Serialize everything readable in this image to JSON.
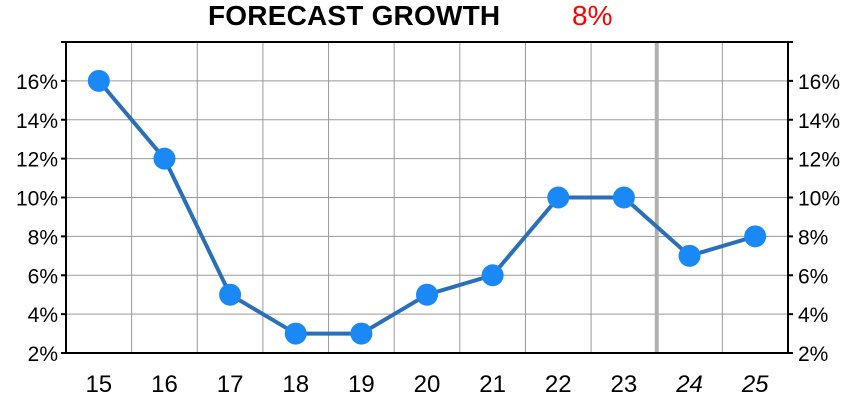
{
  "chart_data": {
    "type": "line",
    "title": "FORECAST GROWTH",
    "title_value": "8%",
    "title_value_color": "#ff0000",
    "x": [
      "15",
      "16",
      "17",
      "18",
      "19",
      "20",
      "21",
      "22",
      "23",
      "24",
      "25"
    ],
    "forecast_categories": [
      "24",
      "25"
    ],
    "series": [
      {
        "values": [
          16,
          12,
          5,
          3,
          3,
          5,
          6,
          10,
          10,
          7,
          8
        ],
        "color": "#1a7fe0"
      }
    ],
    "y_ticks": [
      "2%",
      "4%",
      "6%",
      "8%",
      "10%",
      "12%",
      "14%",
      "16%"
    ],
    "ylim": [
      2,
      18
    ],
    "grid": true,
    "line_color": "#2a6fb8",
    "marker_color": "#1a88f5"
  }
}
